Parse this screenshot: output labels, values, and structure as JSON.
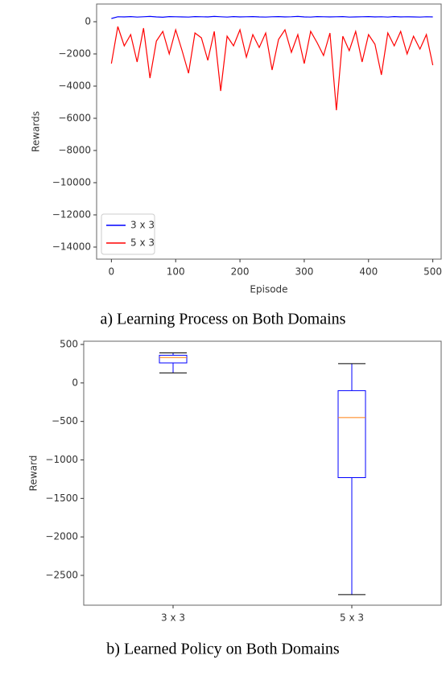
{
  "chart_data": [
    {
      "type": "line",
      "caption": "a) Learning Process on Both Domains",
      "xlabel": "Episode",
      "ylabel": "Rewards",
      "x": [
        0,
        10,
        20,
        30,
        40,
        50,
        60,
        70,
        80,
        90,
        100,
        110,
        120,
        130,
        140,
        150,
        160,
        170,
        180,
        190,
        200,
        210,
        220,
        230,
        240,
        250,
        260,
        270,
        280,
        290,
        300,
        310,
        320,
        330,
        340,
        350,
        360,
        370,
        380,
        390,
        400,
        410,
        420,
        430,
        440,
        450,
        460,
        470,
        480,
        490,
        500
      ],
      "series": [
        {
          "name": "3 x 3",
          "color": "#0000ff",
          "values": [
            200,
            310,
            300,
            320,
            290,
            310,
            330,
            300,
            280,
            320,
            310,
            300,
            290,
            320,
            310,
            300,
            330,
            310,
            290,
            320,
            300,
            310,
            320,
            300,
            290,
            310,
            320,
            300,
            310,
            330,
            300,
            290,
            320,
            310,
            300,
            310,
            320,
            290,
            300,
            310,
            320,
            300,
            310,
            290,
            320,
            300,
            310,
            300,
            290,
            310,
            300
          ]
        },
        {
          "name": "5 x 3",
          "color": "#ff0000",
          "values": [
            -2600,
            -300,
            -1500,
            -800,
            -2500,
            -400,
            -3500,
            -1200,
            -600,
            -2000,
            -500,
            -1800,
            -3200,
            -700,
            -1000,
            -2400,
            -600,
            -4300,
            -900,
            -1500,
            -500,
            -2200,
            -800,
            -1600,
            -700,
            -3000,
            -1100,
            -500,
            -1900,
            -800,
            -2600,
            -600,
            -1300,
            -2100,
            -700,
            -5500,
            -900,
            -1800,
            -600,
            -2500,
            -800,
            -1400,
            -3300,
            -700,
            -1500,
            -600,
            -2000,
            -900,
            -1700,
            -800,
            -2700
          ]
        }
      ],
      "xlim": [
        -23,
        513
      ],
      "xticks": [
        0,
        100,
        200,
        300,
        400,
        500
      ],
      "ylim": [
        -14750,
        1100
      ],
      "yticks": [
        0,
        {
          "value": -2000,
          "label": "−2000"
        },
        {
          "value": -4000,
          "label": "−4000"
        },
        {
          "value": -6000,
          "label": "−6000"
        },
        {
          "value": -8000,
          "label": "−8000"
        },
        {
          "value": -10000,
          "label": "−10000"
        },
        {
          "value": -12000,
          "label": "−12000"
        },
        {
          "value": -14000,
          "label": "−14000"
        }
      ],
      "legend": "lower left"
    },
    {
      "type": "box",
      "caption": "b) Learned Policy on Both Domains",
      "ylabel": "Reward",
      "categories": [
        "3 x 3",
        "5 x 3"
      ],
      "stats": [
        {
          "whislo": 130,
          "q1": 260,
          "med": 330,
          "q3": 360,
          "whishi": 390
        },
        {
          "whislo": -2750,
          "q1": -1230,
          "med": -450,
          "q3": -100,
          "whishi": 250
        }
      ],
      "color": "#0000ff",
      "median_color": "#ff7f0e",
      "ylim": [
        -2887,
        542
      ],
      "yticks": [
        500,
        0,
        {
          "value": -500,
          "label": "−500"
        },
        {
          "value": -1000,
          "label": "−1000"
        },
        {
          "value": -1500,
          "label": "−1500"
        },
        {
          "value": -2000,
          "label": "−2000"
        },
        {
          "value": -2500,
          "label": "−2500"
        }
      ]
    }
  ]
}
